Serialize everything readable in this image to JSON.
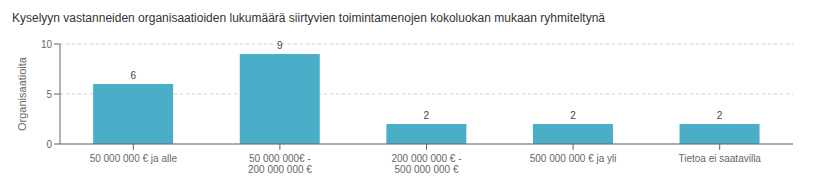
{
  "chart_data": {
    "type": "bar",
    "title": "Kyselyyn vastanneiden organisaatioiden lukumäärä siirtyvien toimintamenojen kokoluokan mukaan ryhmiteltynä",
    "categories": [
      "50 000 000 € ja alle",
      "50 000 000€ - 200 000 000 €",
      "200 000 000 € - 500 000 000 €",
      "500 000 000 € ja yli",
      "Tietoa ei saatavilla"
    ],
    "values": [
      6,
      9,
      2,
      2,
      2
    ],
    "color": "#4aaec9",
    "ylabel": "Organisaatioita",
    "ylim": [
      0,
      10
    ],
    "yticks": [
      0,
      5,
      10
    ],
    "grid": true,
    "data_labels": true
  }
}
